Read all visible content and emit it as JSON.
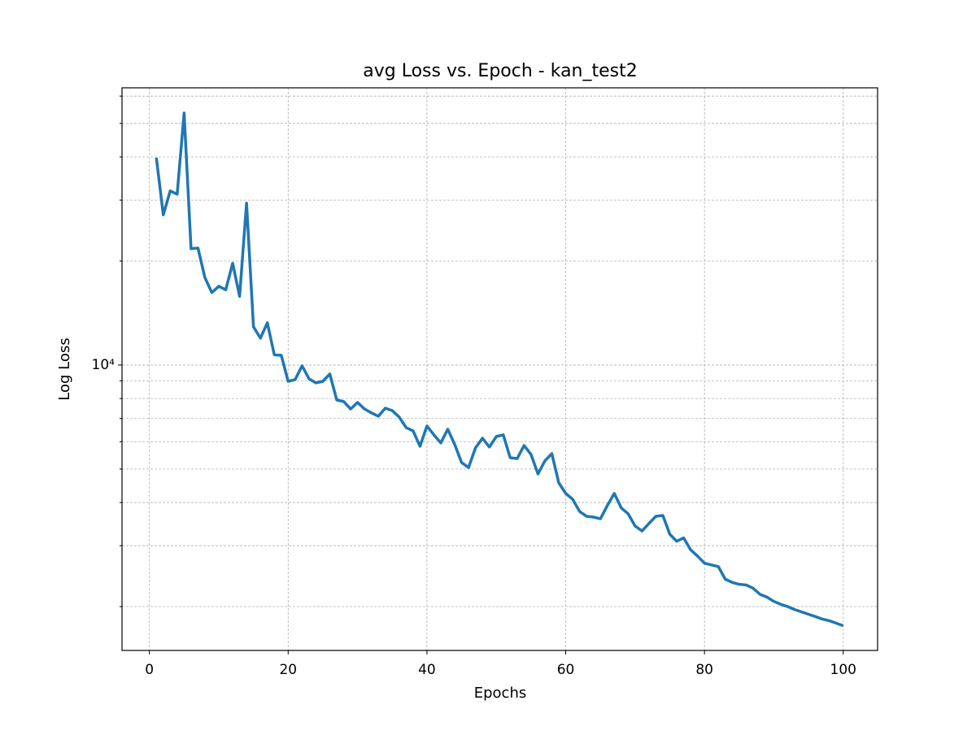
{
  "chart_data": {
    "type": "line",
    "title": "avg Loss vs. Epoch - kan_test2",
    "xlabel": "Epochs",
    "ylabel": "Log Loss",
    "x": [
      1,
      2,
      3,
      4,
      5,
      6,
      7,
      8,
      9,
      10,
      11,
      12,
      13,
      14,
      15,
      16,
      17,
      18,
      19,
      20,
      21,
      22,
      23,
      24,
      25,
      26,
      27,
      28,
      29,
      30,
      31,
      32,
      33,
      34,
      35,
      36,
      37,
      38,
      39,
      40,
      41,
      42,
      43,
      44,
      45,
      46,
      47,
      48,
      49,
      50,
      51,
      52,
      53,
      54,
      55,
      56,
      57,
      58,
      59,
      60,
      61,
      62,
      63,
      64,
      65,
      66,
      67,
      68,
      69,
      70,
      71,
      72,
      73,
      74,
      75,
      76,
      77,
      78,
      79,
      80,
      81,
      82,
      83,
      84,
      85,
      86,
      87,
      88,
      89,
      90,
      91,
      92,
      93,
      94,
      95,
      96,
      97,
      98,
      99,
      100
    ],
    "values": [
      39800,
      27200,
      31900,
      31200,
      53600,
      21700,
      21800,
      17900,
      16200,
      16900,
      16500,
      19700,
      15800,
      29400,
      12900,
      11960,
      13250,
      10700,
      10670,
      8970,
      9070,
      9950,
      9120,
      8880,
      8970,
      9420,
      7920,
      7840,
      7460,
      7790,
      7460,
      7270,
      7110,
      7500,
      7380,
      7070,
      6590,
      6450,
      5820,
      6660,
      6280,
      5950,
      6520,
      5890,
      5220,
      5050,
      5760,
      6140,
      5790,
      6210,
      6280,
      5390,
      5360,
      5850,
      5510,
      4840,
      5280,
      5540,
      4560,
      4250,
      4090,
      3770,
      3650,
      3630,
      3590,
      3920,
      4250,
      3860,
      3710,
      3420,
      3310,
      3480,
      3650,
      3670,
      3240,
      3090,
      3160,
      2920,
      2800,
      2670,
      2640,
      2610,
      2400,
      2350,
      2320,
      2310,
      2260,
      2170,
      2130,
      2070,
      2030,
      2000,
      1960,
      1930,
      1900,
      1870,
      1840,
      1820,
      1790,
      1760
    ],
    "color": "#1f77b4",
    "xlim": [
      -3.95,
      104.95
    ],
    "xticks": [
      0,
      20,
      40,
      60,
      80,
      100
    ],
    "ylim": [
      1493,
      63400
    ],
    "yscale": "log",
    "yticks": [
      {
        "value": 10000,
        "label": "10⁴"
      }
    ],
    "yminorticks": [
      2000,
      3000,
      4000,
      5000,
      6000,
      7000,
      8000,
      9000,
      20000,
      30000,
      40000,
      50000,
      60000
    ],
    "grid": true
  }
}
